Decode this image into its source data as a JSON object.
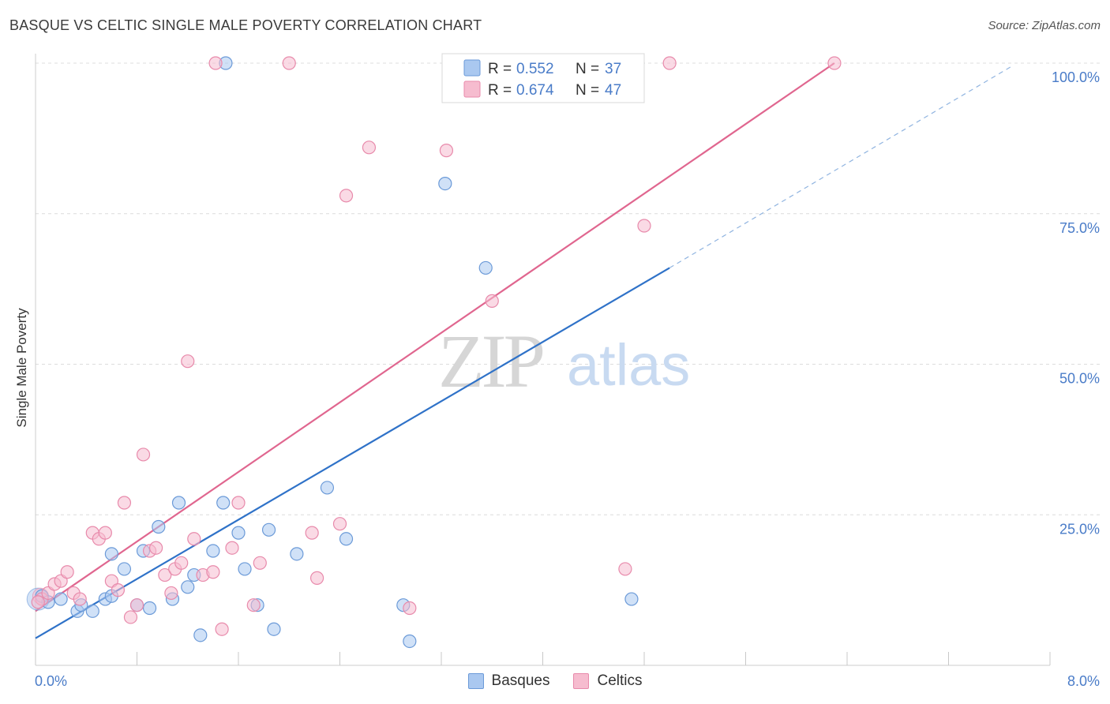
{
  "title": "BASQUE VS CELTIC SINGLE MALE POVERTY CORRELATION CHART",
  "source": "Source: ZipAtlas.com",
  "watermark": {
    "zip": "ZIP",
    "atlas": "atlas"
  },
  "colors": {
    "blue_fill": "#aac8f0",
    "blue_stroke": "#6b9ad8",
    "blue_line": "#2f72c8",
    "pink_fill": "#f6bccf",
    "pink_stroke": "#e88aab",
    "pink_line": "#e0668f",
    "axis_text": "#4a7cc8",
    "grid": "#dcdcdc"
  },
  "legend": {
    "r_label": "R =",
    "n_label": "N =",
    "items": [
      {
        "r": "0.552",
        "n": "37"
      },
      {
        "r": "0.674",
        "n": "47"
      }
    ]
  },
  "bottom_legend": {
    "basques": "Basques",
    "celtics": "Celtics"
  },
  "chart_data": {
    "type": "scatter",
    "title": "BASQUE VS CELTIC SINGLE MALE POVERTY CORRELATION CHART",
    "xlabel": "",
    "ylabel": "Single Male Poverty",
    "xlim": [
      0,
      8
    ],
    "ylim": [
      0,
      100
    ],
    "x_tick_labels": [
      "0.0%",
      "8.0%"
    ],
    "y_tick_labels": [
      "25.0%",
      "50.0%",
      "75.0%",
      "100.0%"
    ],
    "y_ticks": [
      25,
      50,
      75,
      100
    ],
    "grid": true,
    "series": [
      {
        "name": "Basques",
        "r": 0.552,
        "n": 37,
        "trend": {
          "x0": 0.0,
          "y0": 4.5,
          "x1": 5.0,
          "y1": 66.0,
          "dashed_to_x": 7.7,
          "dashed_to_y": 99.5
        },
        "points": [
          [
            0.05,
            11.5
          ],
          [
            0.1,
            10.5
          ],
          [
            0.2,
            11.0
          ],
          [
            0.33,
            9.0
          ],
          [
            0.36,
            10.0
          ],
          [
            0.45,
            9.0
          ],
          [
            0.55,
            11.0
          ],
          [
            0.6,
            11.5
          ],
          [
            0.6,
            18.5
          ],
          [
            0.7,
            16.0
          ],
          [
            0.8,
            10.0
          ],
          [
            0.85,
            19.0
          ],
          [
            0.9,
            9.5
          ],
          [
            0.97,
            23.0
          ],
          [
            1.08,
            11.0
          ],
          [
            1.13,
            27.0
          ],
          [
            1.2,
            13.0
          ],
          [
            1.25,
            15.0
          ],
          [
            1.3,
            5.0
          ],
          [
            1.4,
            19.0
          ],
          [
            1.48,
            27.0
          ],
          [
            1.6,
            22.0
          ],
          [
            1.65,
            16.0
          ],
          [
            1.75,
            10.0
          ],
          [
            1.84,
            22.5
          ],
          [
            1.88,
            6.0
          ],
          [
            2.06,
            18.5
          ],
          [
            2.3,
            29.5
          ],
          [
            2.45,
            21.0
          ],
          [
            2.9,
            10.0
          ],
          [
            2.95,
            4.0
          ],
          [
            3.23,
            80.0
          ],
          [
            3.55,
            66.0
          ],
          [
            4.7,
            11.0
          ],
          [
            1.5,
            100.0
          ],
          [
            3.3,
            100.0
          ],
          [
            4.75,
            100.0
          ]
        ]
      },
      {
        "name": "Celtics",
        "r": 0.674,
        "n": 47,
        "trend": {
          "x0": 0.0,
          "y0": 9.0,
          "x1": 6.3,
          "y1": 100.0
        },
        "points": [
          [
            0.05,
            11.0
          ],
          [
            0.1,
            12.0
          ],
          [
            0.15,
            13.5
          ],
          [
            0.2,
            14.0
          ],
          [
            0.25,
            15.5
          ],
          [
            0.3,
            12.0
          ],
          [
            0.35,
            11.0
          ],
          [
            0.45,
            22.0
          ],
          [
            0.5,
            21.0
          ],
          [
            0.55,
            22.0
          ],
          [
            0.6,
            14.0
          ],
          [
            0.65,
            12.5
          ],
          [
            0.7,
            27.0
          ],
          [
            0.75,
            8.0
          ],
          [
            0.8,
            10.0
          ],
          [
            0.85,
            35.0
          ],
          [
            0.9,
            19.0
          ],
          [
            0.95,
            19.5
          ],
          [
            1.02,
            15.0
          ],
          [
            1.07,
            12.0
          ],
          [
            1.1,
            16.0
          ],
          [
            1.15,
            17.0
          ],
          [
            1.2,
            50.5
          ],
          [
            1.25,
            21.0
          ],
          [
            1.32,
            15.0
          ],
          [
            1.4,
            15.5
          ],
          [
            1.47,
            6.0
          ],
          [
            1.55,
            19.5
          ],
          [
            1.6,
            27.0
          ],
          [
            1.72,
            10.0
          ],
          [
            1.77,
            17.0
          ],
          [
            2.18,
            22.0
          ],
          [
            2.22,
            14.5
          ],
          [
            2.4,
            23.5
          ],
          [
            2.45,
            78.0
          ],
          [
            2.63,
            86.0
          ],
          [
            2.95,
            9.5
          ],
          [
            3.24,
            85.5
          ],
          [
            3.6,
            60.5
          ],
          [
            4.65,
            16.0
          ],
          [
            4.8,
            73.0
          ],
          [
            1.42,
            100.0
          ],
          [
            2.0,
            100.0
          ],
          [
            3.3,
            100.0
          ],
          [
            5.0,
            100.0
          ],
          [
            6.3,
            100.0
          ],
          [
            0.02,
            10.5
          ]
        ]
      }
    ]
  }
}
